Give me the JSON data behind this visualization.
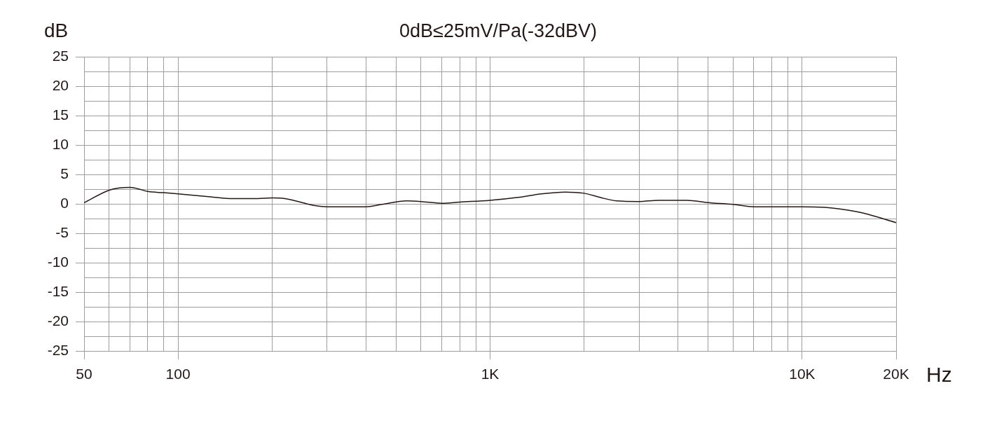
{
  "chart_data": {
    "type": "line",
    "title": "0dB≤25mV/Pa(-32dBV)",
    "xlabel": "Hz",
    "ylabel": "dB",
    "x": [
      50,
      60,
      65,
      70,
      74,
      80,
      90,
      100,
      127,
      150,
      180,
      200,
      220,
      250,
      275,
      300,
      400,
      450,
      540,
      600,
      700,
      800,
      1000,
      1230,
      1460,
      1740,
      2000,
      2250,
      2540,
      3000,
      3470,
      4000,
      4270,
      5000,
      6000,
      7000,
      8000,
      10000,
      11800,
      13300,
      15800,
      20000
    ],
    "series": [
      {
        "color": "#231815",
        "values": [
          0.2,
          2.3,
          2.7,
          2.8,
          2.6,
          2.1,
          1.9,
          1.7,
          1.2,
          0.9,
          0.9,
          1.0,
          0.9,
          0.2,
          -0.3,
          -0.5,
          -0.5,
          -0.1,
          0.5,
          0.4,
          0.1,
          0.3,
          0.6,
          1.1,
          1.7,
          2.0,
          1.8,
          1.1,
          0.5,
          0.4,
          0.6,
          0.6,
          0.6,
          0.2,
          -0.1,
          -0.5,
          -0.5,
          -0.5,
          -0.6,
          -0.9,
          -1.6,
          -3.2
        ]
      }
    ],
    "xlim": [
      50,
      20000
    ],
    "xticks": [
      50,
      {
        "value": 60,
        "label": null
      },
      {
        "value": 70,
        "label": null
      },
      {
        "value": 80,
        "label": null
      },
      {
        "value": 90,
        "label": null
      },
      100,
      {
        "value": 200,
        "label": null
      },
      {
        "value": 300,
        "label": null
      },
      {
        "value": 400,
        "label": null
      },
      {
        "value": 500,
        "label": null
      },
      {
        "value": 600,
        "label": null
      },
      {
        "value": 700,
        "label": null
      },
      {
        "value": 800,
        "label": null
      },
      {
        "value": 900,
        "label": null
      },
      {
        "value": 1000,
        "label": "1K"
      },
      {
        "value": 2000,
        "label": null
      },
      {
        "value": 3000,
        "label": null
      },
      {
        "value": 4000,
        "label": null
      },
      {
        "value": 5000,
        "label": null
      },
      {
        "value": 6000,
        "label": null
      },
      {
        "value": 7000,
        "label": null
      },
      {
        "value": 8000,
        "label": null
      },
      {
        "value": 9000,
        "label": null
      },
      {
        "value": 10000,
        "label": "10K"
      },
      {
        "value": 20000,
        "label": "20K"
      }
    ],
    "ylim": [
      -25,
      25
    ],
    "yticks": [
      -25,
      {
        "value": -22.5,
        "label": null
      },
      -20,
      {
        "value": -17.5,
        "label": null
      },
      -15,
      {
        "value": -12.5,
        "label": null
      },
      -10,
      {
        "value": -7.5,
        "label": null
      },
      -5,
      {
        "value": -2.5,
        "label": null
      },
      0,
      {
        "value": 2.5,
        "label": null
      },
      5,
      {
        "value": 7.5,
        "label": null
      },
      10,
      {
        "value": 12.5,
        "label": null
      },
      15,
      {
        "value": 17.5,
        "label": null
      },
      20,
      {
        "value": 22.5,
        "label": null
      },
      25
    ],
    "log": "x",
    "grid": true,
    "marker": "none",
    "line_style": "solid"
  }
}
